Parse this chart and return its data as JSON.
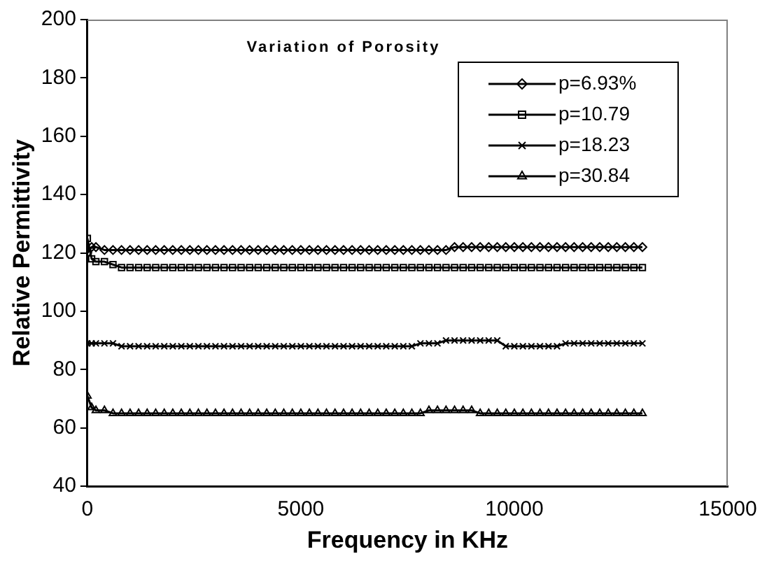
{
  "chart_data": {
    "type": "line",
    "title": "Variation of Porosity",
    "xlabel": "Frequency in KHz",
    "ylabel": "Relative Permittivity",
    "x": [
      0,
      100,
      200,
      400,
      600,
      800,
      1000,
      1200,
      1400,
      1600,
      1800,
      2000,
      2200,
      2400,
      2600,
      2800,
      3000,
      3200,
      3400,
      3600,
      3800,
      4000,
      4200,
      4400,
      4600,
      4800,
      5000,
      5200,
      5400,
      5600,
      5800,
      6000,
      6200,
      6400,
      6600,
      6800,
      7000,
      7200,
      7400,
      7600,
      7800,
      8000,
      8200,
      8400,
      8600,
      8800,
      9000,
      9200,
      9400,
      9600,
      9800,
      10000,
      10200,
      10400,
      10600,
      10800,
      11000,
      11200,
      11400,
      11600,
      11800,
      12000,
      12200,
      12400,
      12600,
      12800,
      13000
    ],
    "xlim": [
      0,
      15000
    ],
    "xticks": [
      0,
      5000,
      10000,
      15000
    ],
    "ylim": [
      40,
      200
    ],
    "yticks": [
      40,
      60,
      80,
      100,
      120,
      140,
      160,
      180,
      200
    ],
    "grid": false,
    "legend": "top right",
    "line_style": "solid",
    "series": [
      {
        "name": "p=6.93%",
        "color": "#000000",
        "marker": "diamond",
        "values": [
          120,
          122,
          122,
          121,
          121,
          121,
          121,
          121,
          121,
          121,
          121,
          121,
          121,
          121,
          121,
          121,
          121,
          121,
          121,
          121,
          121,
          121,
          121,
          121,
          121,
          121,
          121,
          121,
          121,
          121,
          121,
          121,
          121,
          121,
          121,
          121,
          121,
          121,
          121,
          121,
          121,
          121,
          121,
          121,
          122,
          122,
          122,
          122,
          122,
          122,
          122,
          122,
          122,
          122,
          122,
          122,
          122,
          122,
          122,
          122,
          122,
          122,
          122,
          122,
          122,
          122,
          122
        ]
      },
      {
        "name": "p=10.79",
        "color": "#000000",
        "marker": "square",
        "values": [
          125,
          118,
          117,
          117,
          116,
          115,
          115,
          115,
          115,
          115,
          115,
          115,
          115,
          115,
          115,
          115,
          115,
          115,
          115,
          115,
          115,
          115,
          115,
          115,
          115,
          115,
          115,
          115,
          115,
          115,
          115,
          115,
          115,
          115,
          115,
          115,
          115,
          115,
          115,
          115,
          115,
          115,
          115,
          115,
          115,
          115,
          115,
          115,
          115,
          115,
          115,
          115,
          115,
          115,
          115,
          115,
          115,
          115,
          115,
          115,
          115,
          115,
          115,
          115,
          115,
          115,
          115
        ]
      },
      {
        "name": "p=18.23",
        "color": "#000000",
        "marker": "cross",
        "values": [
          89,
          89,
          89,
          89,
          89,
          88,
          88,
          88,
          88,
          88,
          88,
          88,
          88,
          88,
          88,
          88,
          88,
          88,
          88,
          88,
          88,
          88,
          88,
          88,
          88,
          88,
          88,
          88,
          88,
          88,
          88,
          88,
          88,
          88,
          88,
          88,
          88,
          88,
          88,
          88,
          89,
          89,
          89,
          90,
          90,
          90,
          90,
          90,
          90,
          90,
          88,
          88,
          88,
          88,
          88,
          88,
          88,
          89,
          89,
          89,
          89,
          89,
          89,
          89,
          89,
          89,
          89
        ]
      },
      {
        "name": "p=30.84",
        "color": "#000000",
        "marker": "triangle",
        "values": [
          71,
          67,
          66,
          66,
          65,
          65,
          65,
          65,
          65,
          65,
          65,
          65,
          65,
          65,
          65,
          65,
          65,
          65,
          65,
          65,
          65,
          65,
          65,
          65,
          65,
          65,
          65,
          65,
          65,
          65,
          65,
          65,
          65,
          65,
          65,
          65,
          65,
          65,
          65,
          65,
          65,
          66,
          66,
          66,
          66,
          66,
          66,
          65,
          65,
          65,
          65,
          65,
          65,
          65,
          65,
          65,
          65,
          65,
          65,
          65,
          65,
          65,
          65,
          65,
          65,
          65,
          65
        ]
      }
    ]
  }
}
